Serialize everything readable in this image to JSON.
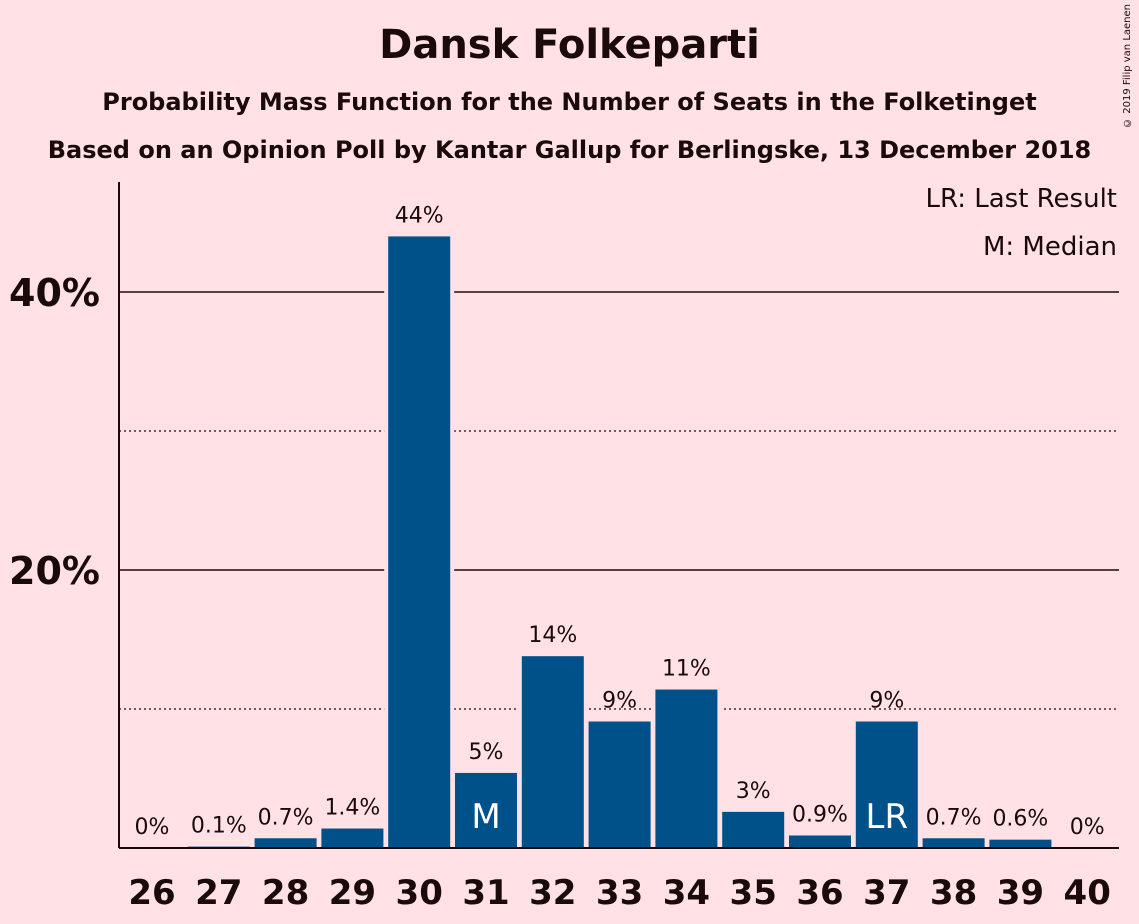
{
  "header": {
    "title": "Dansk Folkeparti",
    "subtitle1": "Probability Mass Function for the Number of Seats in the Folketinget",
    "subtitle2": "Based on an Opinion Poll by Kantar Gallup for Berlingske, 13 December 2018",
    "copyright": "© 2019 Filip van Laenen"
  },
  "legend": {
    "lr": "LR: Last Result",
    "m": "M: Median"
  },
  "chart_data": {
    "type": "bar",
    "categories": [
      "26",
      "27",
      "28",
      "29",
      "30",
      "31",
      "32",
      "33",
      "34",
      "35",
      "36",
      "37",
      "38",
      "39",
      "40"
    ],
    "values": [
      0,
      0.1,
      0.7,
      1.4,
      44,
      5.4,
      13.8,
      9.1,
      11.4,
      2.6,
      0.9,
      9.1,
      0.7,
      0.6,
      0
    ],
    "value_labels": [
      "0%",
      "0.1%",
      "0.7%",
      "1.4%",
      "44%",
      "5%",
      "14%",
      "9%",
      "11%",
      "3%",
      "0.9%",
      "9%",
      "0.7%",
      "0.6%",
      "0%"
    ],
    "bar_markers": {
      "31": "M",
      "37": "LR"
    },
    "y_ticks": [
      {
        "value": 20,
        "label": "20%"
      },
      {
        "value": 40,
        "label": "40%"
      }
    ],
    "minor_gridlines": [
      10,
      30
    ],
    "ylim": [
      0,
      48
    ],
    "bar_color": "#00518a",
    "background_color": "#ffe1e6",
    "grid": true,
    "legend_position": "top-right"
  }
}
